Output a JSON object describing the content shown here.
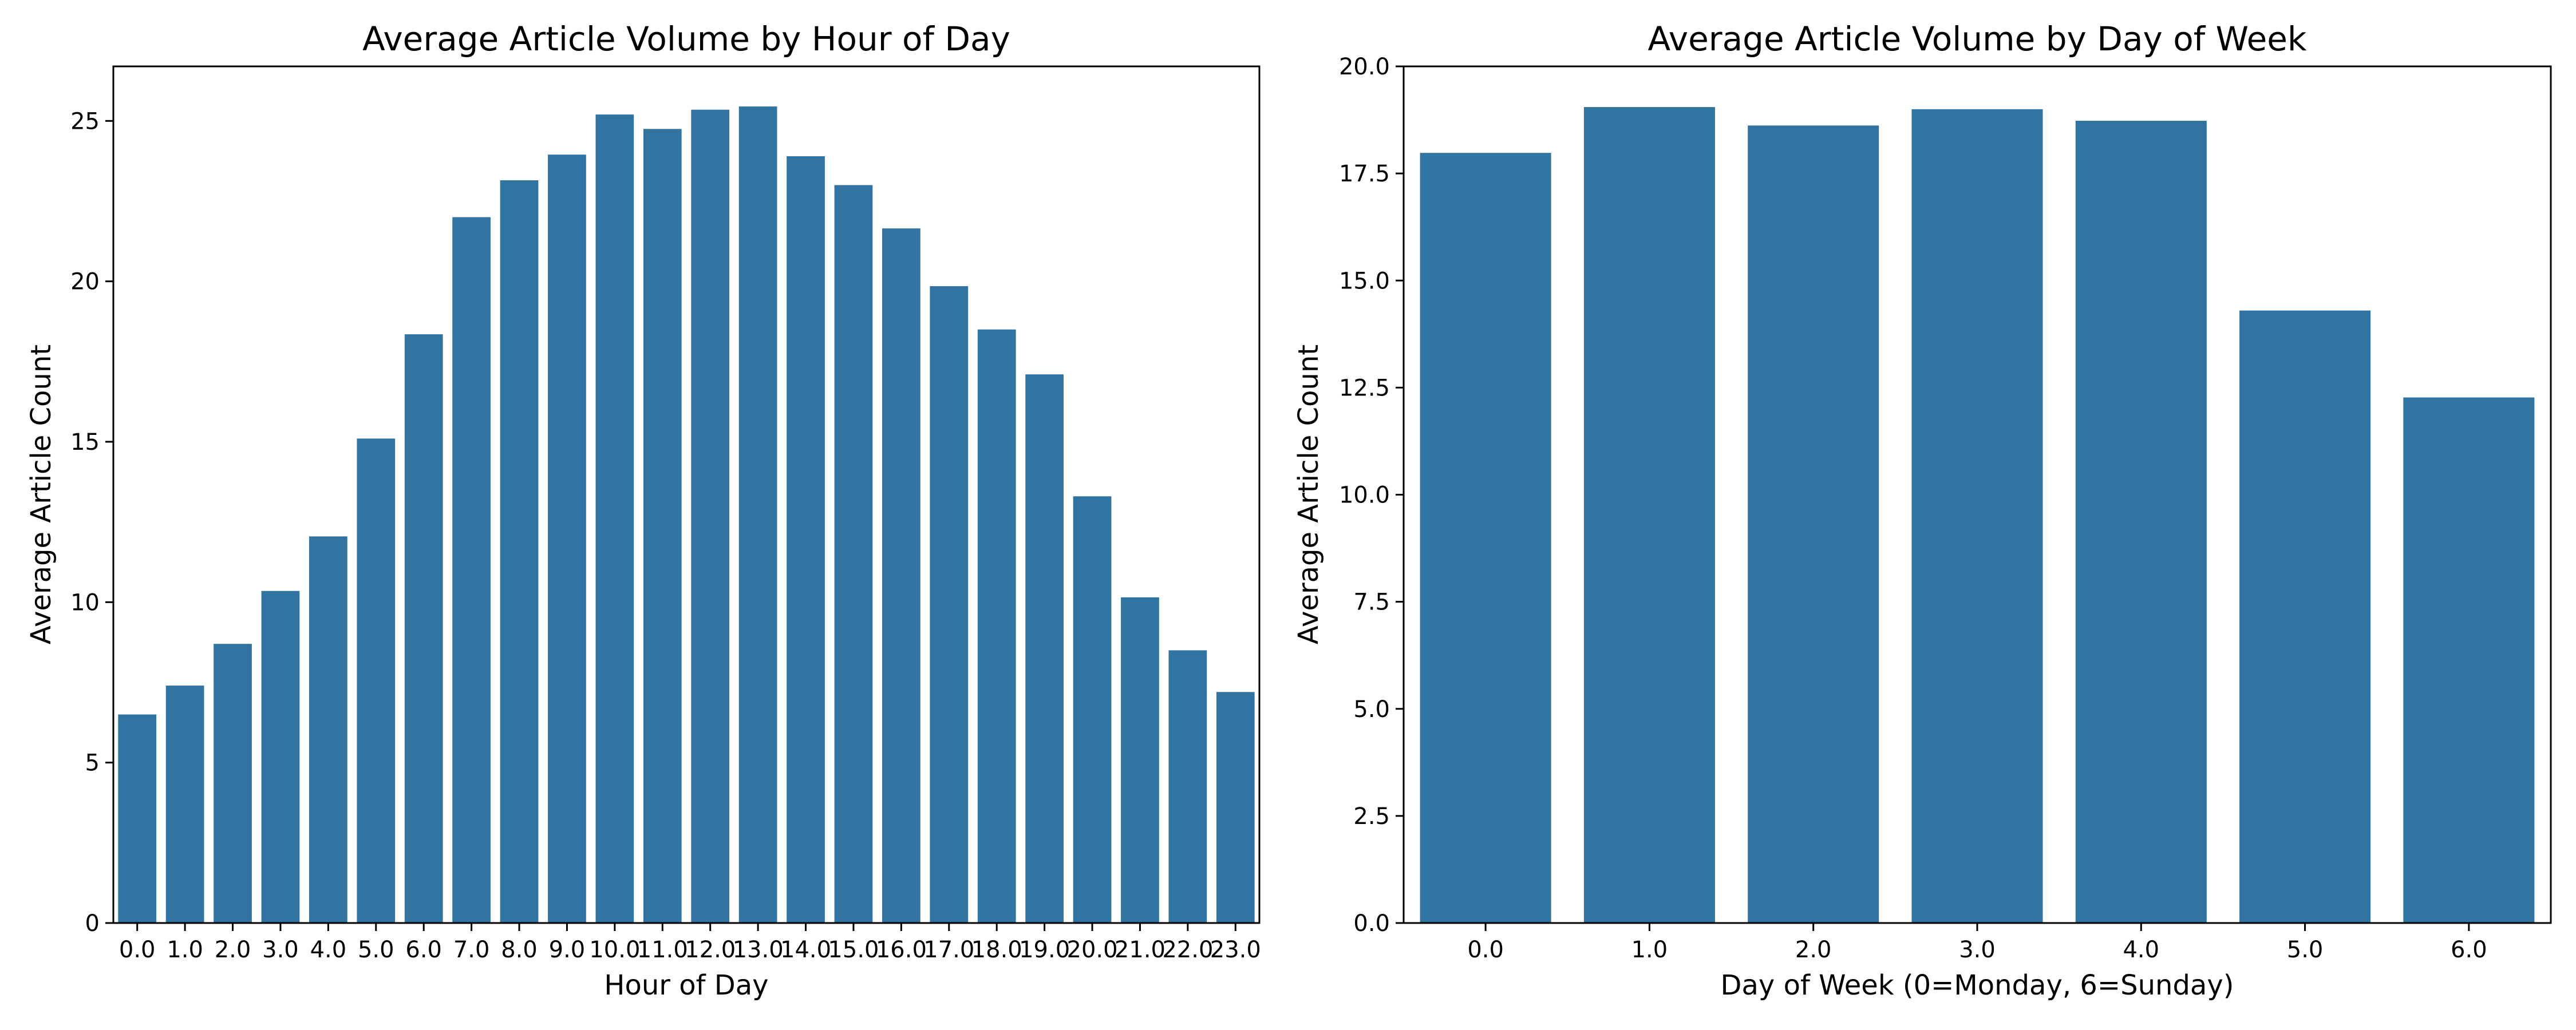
{
  "chart_data": [
    {
      "type": "bar",
      "title": "Average Article Volume by Hour of Day",
      "xlabel": "Hour of Day",
      "ylabel": "Average Article Count",
      "categories": [
        "0.0",
        "1.0",
        "2.0",
        "3.0",
        "4.0",
        "5.0",
        "6.0",
        "7.0",
        "8.0",
        "9.0",
        "10.0",
        "11.0",
        "12.0",
        "13.0",
        "14.0",
        "15.0",
        "16.0",
        "17.0",
        "18.0",
        "19.0",
        "20.0",
        "21.0",
        "22.0",
        "23.0"
      ],
      "values": [
        6.5,
        7.4,
        8.7,
        10.35,
        12.05,
        15.1,
        18.35,
        22.0,
        23.15,
        23.95,
        25.2,
        24.75,
        25.35,
        25.45,
        23.9,
        23.0,
        21.65,
        19.85,
        18.5,
        17.1,
        13.3,
        10.15,
        8.5,
        7.2
      ],
      "ylim": [
        0,
        26.7
      ],
      "yticks": [
        0,
        5,
        10,
        15,
        20,
        25
      ],
      "ytick_labels": [
        "0",
        "5",
        "10",
        "15",
        "20",
        "25"
      ],
      "color": "#3274a1",
      "grid": false
    },
    {
      "type": "bar",
      "title": "Average Article Volume by Day of Week",
      "xlabel": "Day of Week (0=Monday, 6=Sunday)",
      "ylabel": "Average Article Count",
      "categories": [
        "0.0",
        "1.0",
        "2.0",
        "3.0",
        "4.0",
        "5.0",
        "6.0"
      ],
      "values": [
        17.98,
        19.05,
        18.62,
        19.0,
        18.73,
        14.3,
        12.27
      ],
      "ylim": [
        0,
        20.0
      ],
      "yticks": [
        0,
        2.5,
        5,
        7.5,
        10,
        12.5,
        15,
        17.5,
        20
      ],
      "ytick_labels": [
        "0.0",
        "2.5",
        "5.0",
        "7.5",
        "10.0",
        "12.5",
        "15.0",
        "17.5",
        "20.0"
      ],
      "color": "#3274a1",
      "grid": false
    }
  ]
}
